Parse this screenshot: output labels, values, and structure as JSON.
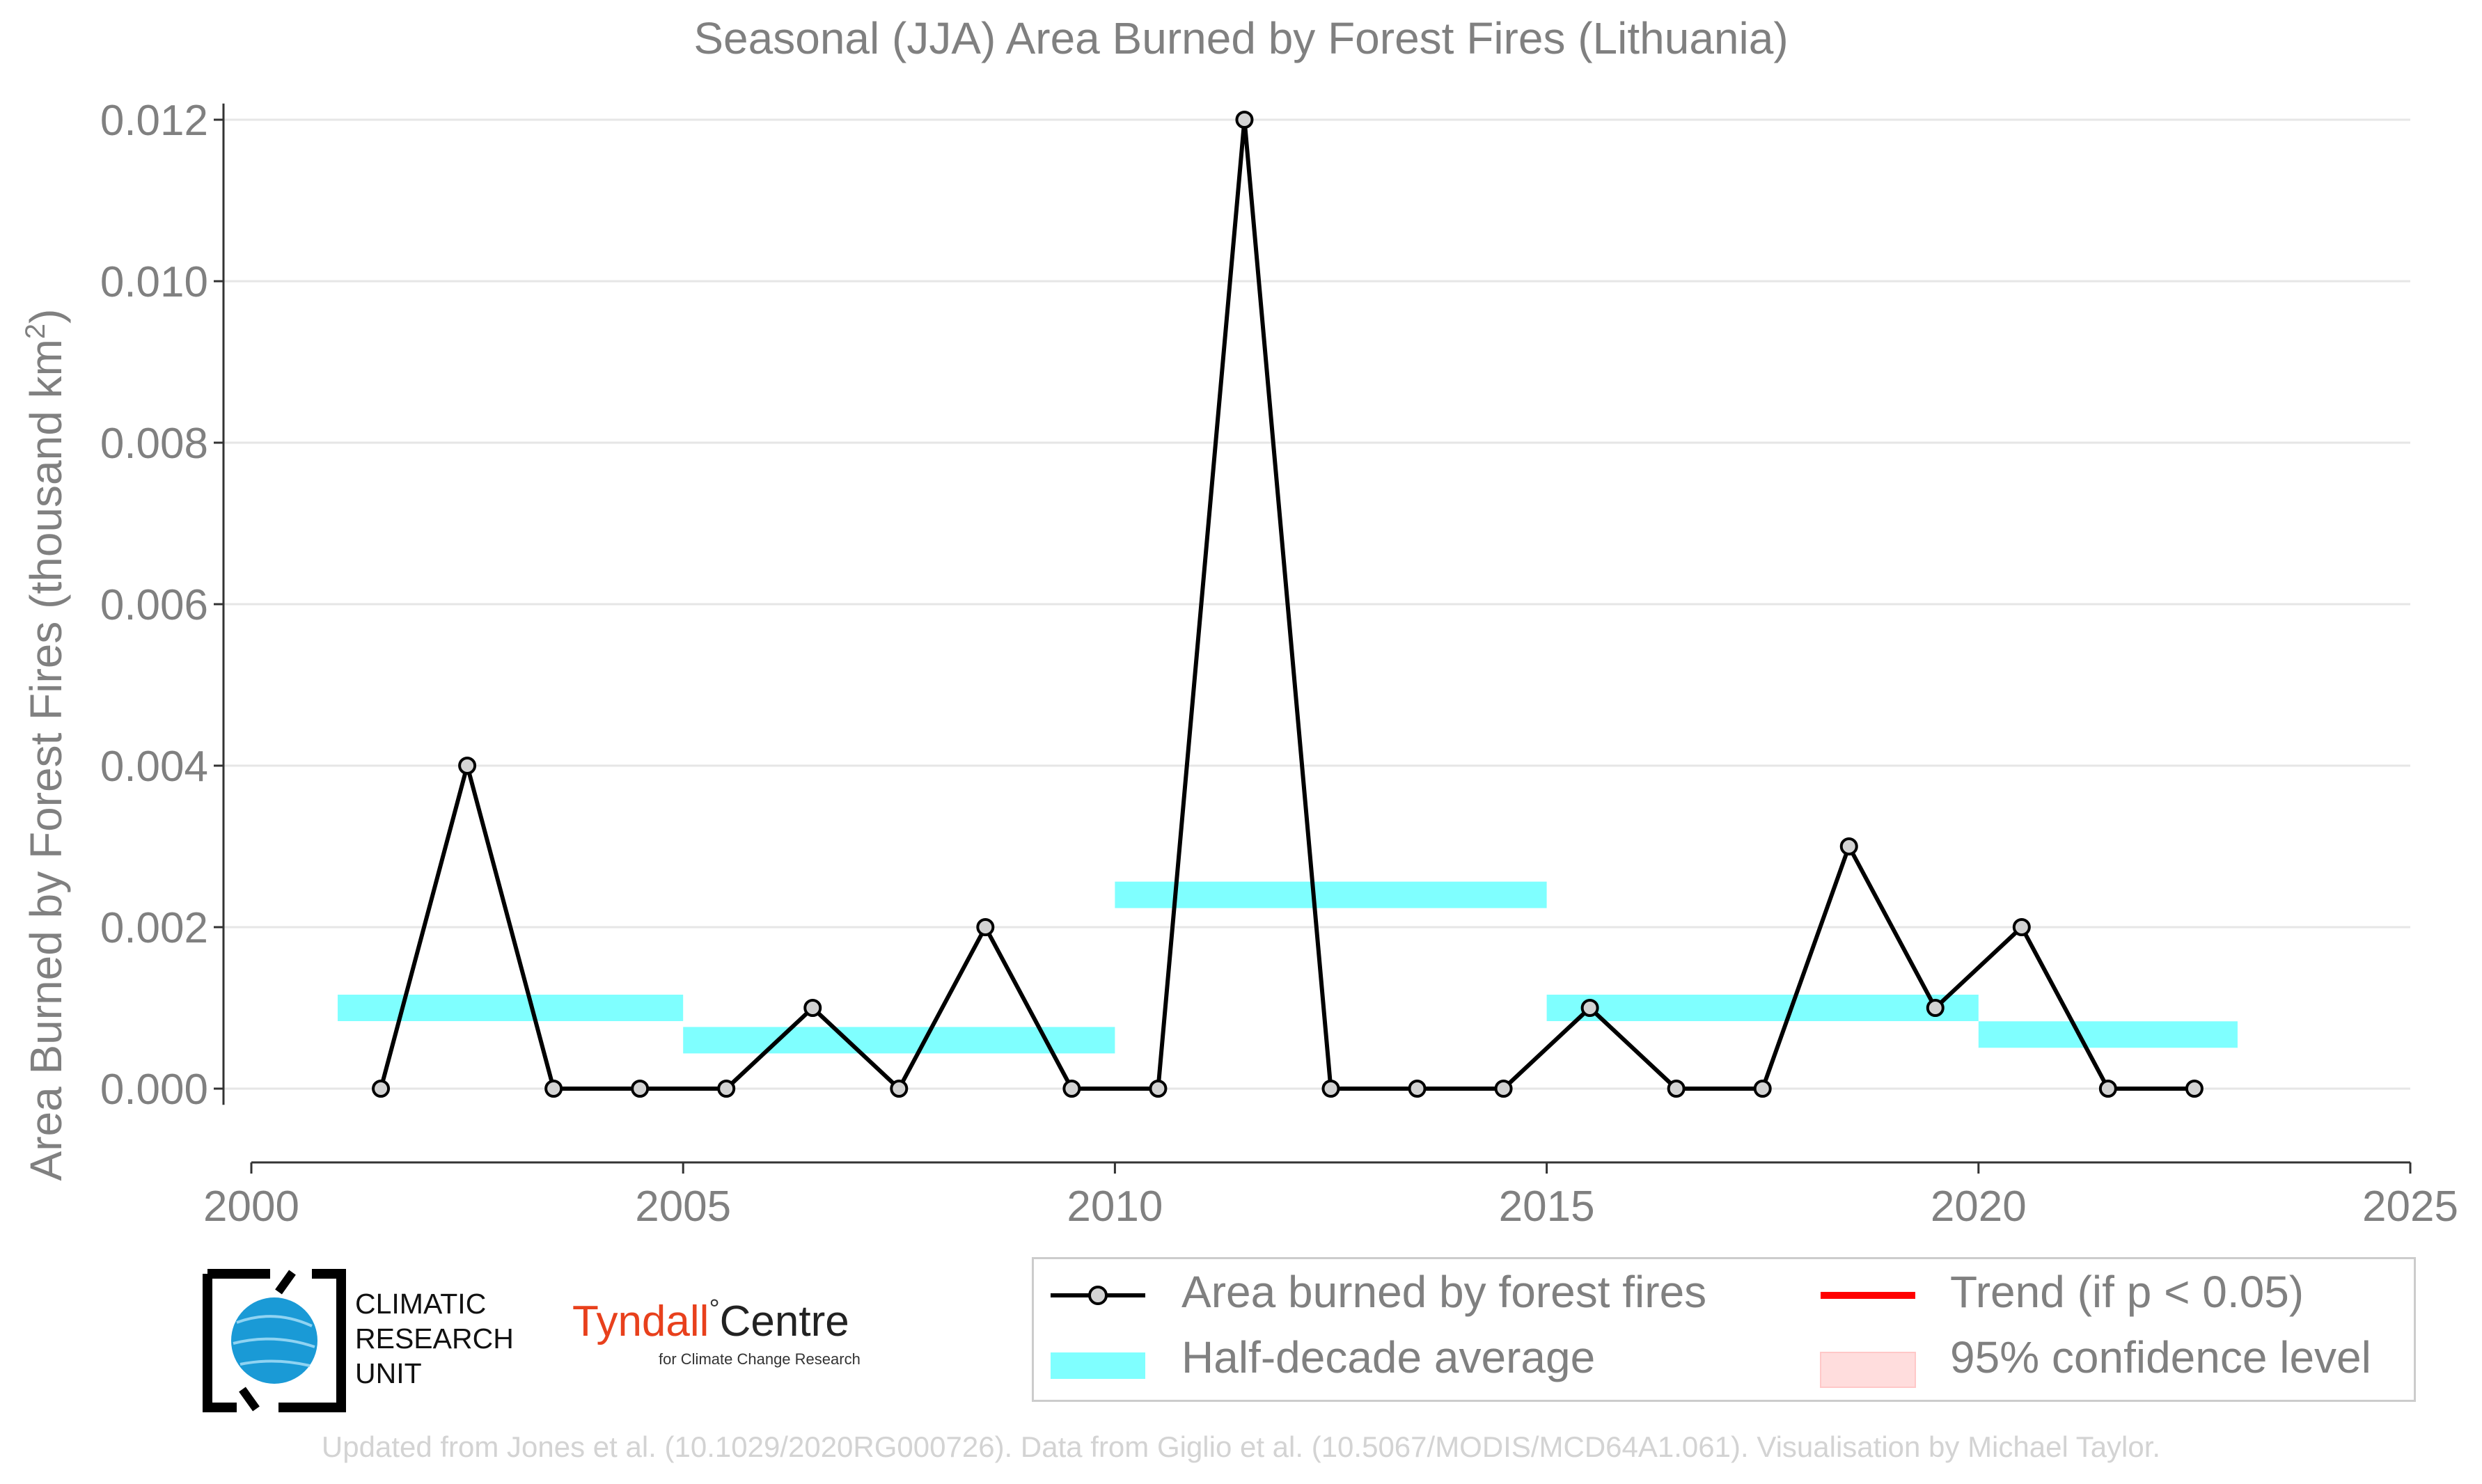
{
  "chart_data": {
    "type": "line",
    "title": "Seasonal (JJA) Area Burned by Forest Fires (Lithuania)",
    "xlabel": "",
    "ylabel": "Area Burned by Forest Fires (thousand km",
    "ylabel_superscript": "2",
    "ylabel_close": ")",
    "xlim": [
      2000,
      2025
    ],
    "ylim": [
      -0.0009,
      0.0122
    ],
    "xticks": [
      2000,
      2005,
      2010,
      2015,
      2020,
      2025
    ],
    "xtick_labels": [
      "2000",
      "2005",
      "2010",
      "2015",
      "2020",
      "2025"
    ],
    "yticks": [
      0.0,
      0.002,
      0.004,
      0.006,
      0.008,
      0.01,
      0.012
    ],
    "ytick_labels": [
      "0.000",
      "0.002",
      "0.004",
      "0.006",
      "0.008",
      "0.010",
      "0.012"
    ],
    "grid": true,
    "legend_position": "bottom-right",
    "series": [
      {
        "name": "Area burned by forest fires",
        "color": "#000000",
        "marker_fill": "#d3d3d3",
        "x": [
          2001.5,
          2002.5,
          2003.5,
          2004.5,
          2005.5,
          2006.5,
          2007.5,
          2008.5,
          2009.5,
          2010.5,
          2011.5,
          2012.5,
          2013.5,
          2014.5,
          2015.5,
          2016.5,
          2017.5,
          2018.5,
          2019.5,
          2020.5,
          2021.5,
          2022.5
        ],
        "y": [
          0.0,
          0.004,
          0.0,
          0.0,
          0.0,
          0.001,
          0.0,
          0.002,
          0.0,
          0.0,
          0.012,
          0.0,
          0.0,
          0.0,
          0.001,
          0.0,
          0.0,
          0.003,
          0.001,
          0.002,
          0.0,
          0.0
        ]
      }
    ],
    "half_decade_average": {
      "name": "Half-decade average",
      "color": "#7fffff",
      "segments": [
        {
          "x0": 2001,
          "x1": 2005,
          "y": 0.001
        },
        {
          "x0": 2005,
          "x1": 2010,
          "y": 0.0006
        },
        {
          "x0": 2010,
          "x1": 2015,
          "y": 0.0024
        },
        {
          "x0": 2015,
          "x1": 2020,
          "y": 0.001
        },
        {
          "x0": 2020,
          "x1": 2023,
          "y": 0.00067
        }
      ]
    },
    "legend": [
      {
        "label": "Area burned by forest fires",
        "kind": "line-marker"
      },
      {
        "label": "Half-decade average",
        "kind": "band"
      },
      {
        "label": "Trend (if p < 0.05)",
        "kind": "line",
        "color": "#ff0000"
      },
      {
        "label": "95% confidence level",
        "kind": "patch",
        "color": "#ffdddd"
      }
    ]
  },
  "logos": {
    "cru_text": [
      "CLIMATIC",
      "RESEARCH",
      "UNIT"
    ],
    "tyndall_word": "Tyndall",
    "tyndall_deg": "°",
    "tyndall_centre": "Centre",
    "tyndall_sub": "for Climate Change Research"
  },
  "credit": "Updated from Jones et al. (10.1029/2020RG000726). Data from Giglio et al. (10.5067/MODIS/MCD64A1.061). Visualisation by Michael Taylor."
}
